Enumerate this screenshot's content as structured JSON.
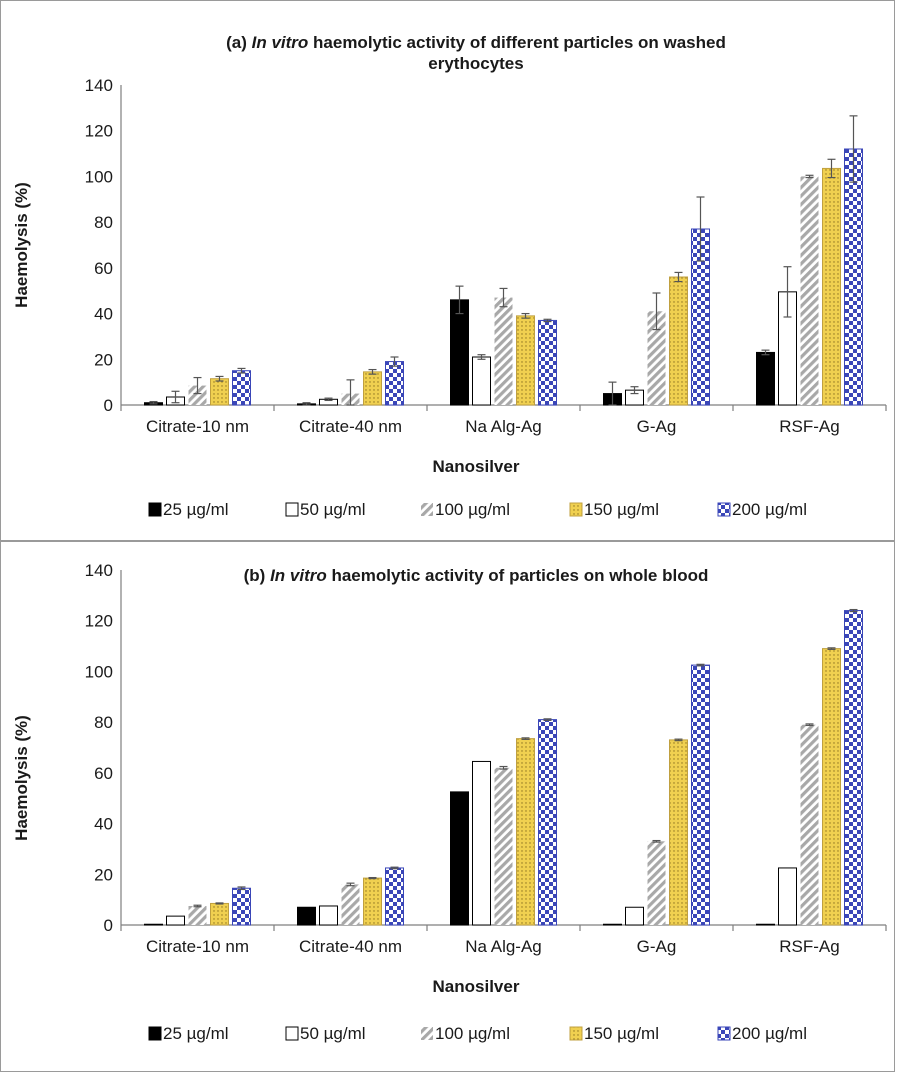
{
  "chart_data": [
    {
      "type": "bar",
      "title_prefix": "(a) ",
      "title_italic": "In vitro",
      "title_rest": " haemolytic activity of different particles on washed",
      "title_line2": "erythocytes",
      "xlabel": "Nanosilver",
      "ylabel": "Haemolysis (%)",
      "ylim": [
        0,
        140
      ],
      "yticks": [
        "0",
        "20",
        "40",
        "60",
        "80",
        "100",
        "120",
        "140"
      ],
      "categories": [
        "Citrate-10 nm",
        "Citrate-40 nm",
        "Na Alg-Ag",
        "G-Ag",
        "RSF-Ag"
      ],
      "series": [
        {
          "name": "25 µg/ml",
          "values": [
            1,
            0.5,
            46,
            5,
            23
          ],
          "errors": [
            0.5,
            0.5,
            6,
            5,
            1
          ]
        },
        {
          "name": "50 µg/ml",
          "values": [
            3.5,
            2.5,
            21,
            6.5,
            49.5
          ],
          "errors": [
            2.5,
            0.5,
            1,
            1.5,
            11
          ]
        },
        {
          "name": "100 µg/ml",
          "values": [
            8.5,
            5,
            47,
            41,
            100
          ],
          "errors": [
            3.5,
            6,
            4,
            8,
            0.5
          ]
        },
        {
          "name": "150 µg/ml",
          "values": [
            11.5,
            14.5,
            39,
            56,
            103.5
          ],
          "errors": [
            1,
            1,
            1,
            2,
            4
          ]
        },
        {
          "name": "200 µg/ml",
          "values": [
            15,
            19,
            37,
            77,
            112
          ],
          "errors": [
            1,
            2,
            0.5,
            14,
            14.5
          ]
        }
      ],
      "legend_position": "bottom"
    },
    {
      "type": "bar",
      "title_prefix": "(b) ",
      "title_italic": "In vitro",
      "title_rest": " haemolytic activity of particles on whole blood",
      "title_line2": "",
      "xlabel": "Nanosilver",
      "ylabel": "Haemolysis (%)",
      "ylim": [
        0,
        140
      ],
      "yticks": [
        "0",
        "20",
        "40",
        "60",
        "80",
        "100",
        "120",
        "140"
      ],
      "categories": [
        "Citrate-10 nm",
        "Citrate-40 nm",
        "Na Alg-Ag",
        "G-Ag",
        "RSF-Ag"
      ],
      "series": [
        {
          "name": "25 µg/ml",
          "values": [
            0.3,
            7,
            52.5,
            0.3,
            0.3
          ],
          "errors": [
            0,
            0,
            0,
            0,
            0
          ]
        },
        {
          "name": "50 µg/ml",
          "values": [
            3.5,
            7.5,
            64.5,
            7,
            22.5
          ],
          "errors": [
            0,
            0,
            0,
            0,
            0
          ]
        },
        {
          "name": "100 µg/ml",
          "values": [
            7.5,
            16,
            62,
            33,
            79
          ],
          "errors": [
            0.3,
            0.5,
            0.5,
            0.3,
            0.3
          ]
        },
        {
          "name": "150 µg/ml",
          "values": [
            8.5,
            18.5,
            73.5,
            73,
            109
          ],
          "errors": [
            0.2,
            0.2,
            0.3,
            0.3,
            0.3
          ]
        },
        {
          "name": "200 µg/ml",
          "values": [
            14.5,
            22.5,
            81,
            102.5,
            124
          ],
          "errors": [
            0.5,
            0.3,
            0.3,
            0.3,
            0.4
          ]
        }
      ],
      "legend_position": "bottom"
    }
  ],
  "colors": {
    "s25": "#000000",
    "s50": "#ffffff",
    "s100": "#a8a8a8",
    "s150": "#f0d050",
    "s200": "#3a46b8",
    "axis": "#7f7f7f",
    "error_bar": "#555555"
  }
}
